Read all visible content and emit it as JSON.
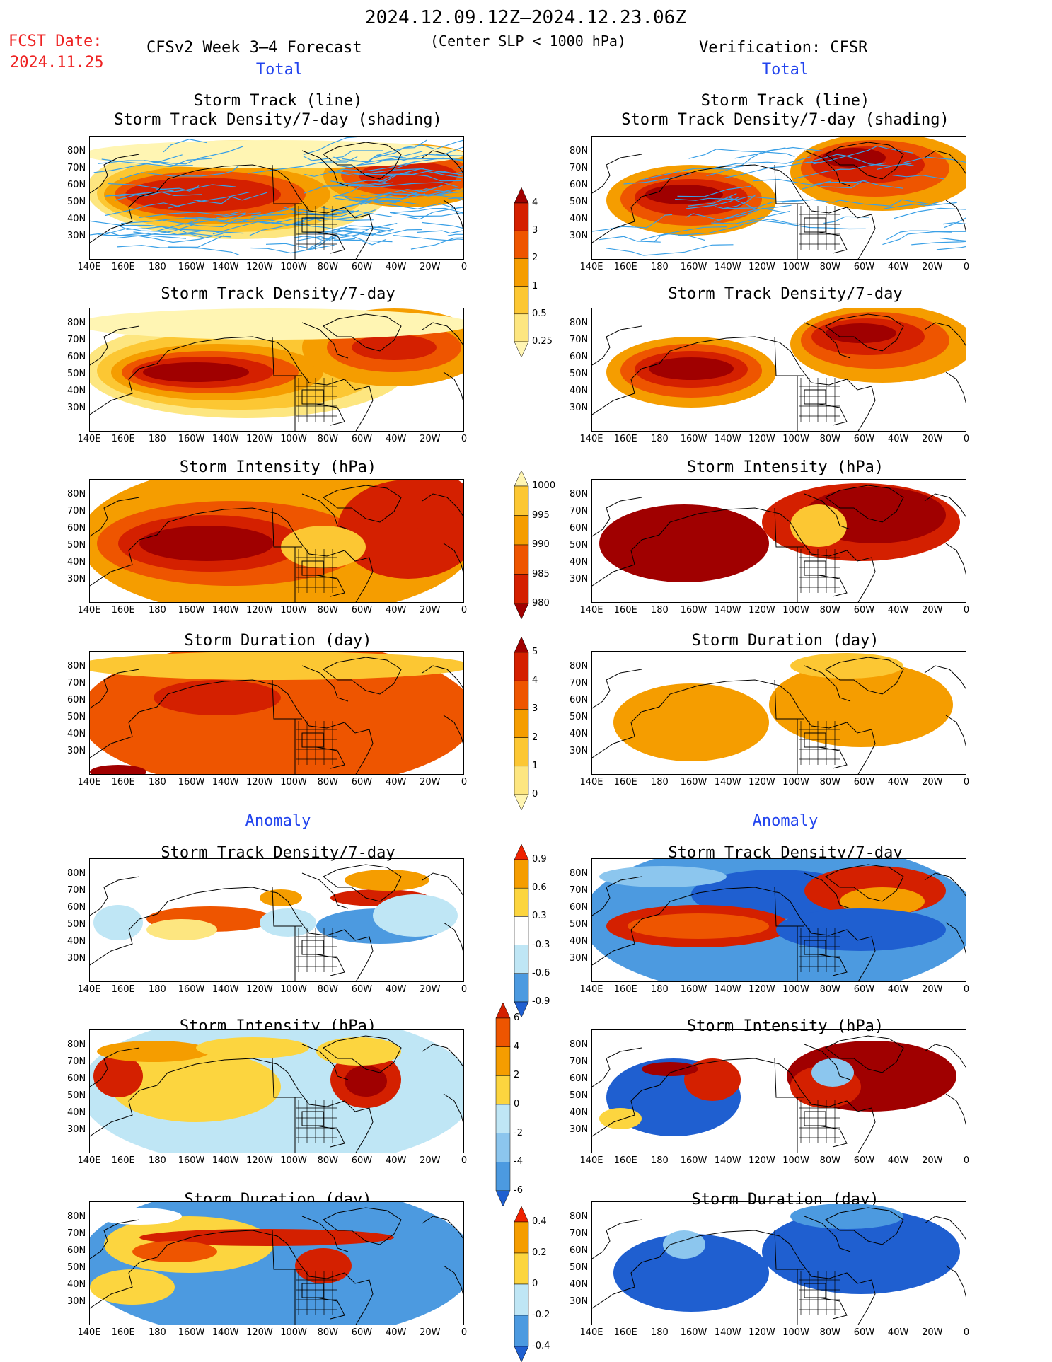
{
  "header": {
    "period": "2024.12.09.12Z–2024.12.23.06Z",
    "fcst_date_label": "FCST Date:",
    "fcst_date_value": "2024.11.25",
    "left_model": "CFSv2 Week 3–4 Forecast",
    "criterion": "(Center SLP < 1000 hPa)",
    "verification": "Verification: CFSR"
  },
  "sections": {
    "total": "Total",
    "anomaly": "Anomaly"
  },
  "panel_titles": {
    "track_line": "Storm Track (line)",
    "track_shading": "Storm Track Density/7-day (shading)",
    "density": "Storm Track Density/7-day",
    "intensity": "Storm Intensity (hPa)",
    "duration": "Storm Duration (day)"
  },
  "axes": {
    "lat_labels": [
      "80N",
      "70N",
      "60N",
      "50N",
      "40N",
      "30N"
    ],
    "lon_labels": [
      "140E",
      "160E",
      "180",
      "160W",
      "140W",
      "120W",
      "100W",
      "80W",
      "60W",
      "40W",
      "20W",
      "0"
    ]
  },
  "colorbars": {
    "density_total": {
      "labels": [
        "4",
        "3",
        "2",
        "1",
        "0.5",
        "0.25"
      ],
      "colors": [
        "#a00000",
        "#d42000",
        "#ee5500",
        "#f59d00",
        "#fcc733",
        "#fde680",
        "#fff5b3"
      ]
    },
    "intensity_total": {
      "labels": [
        "1000",
        "995",
        "990",
        "985",
        "980"
      ],
      "colors": [
        "#fff5b3",
        "#fcc733",
        "#f59d00",
        "#ee5500",
        "#d42000",
        "#a00000"
      ]
    },
    "duration_total": {
      "labels": [
        "5",
        "4",
        "3",
        "2",
        "1",
        "0"
      ],
      "colors": [
        "#a00000",
        "#d42000",
        "#ee5500",
        "#f59d00",
        "#fcc733",
        "#fde680",
        "#fff5b3"
      ]
    },
    "density_anom": {
      "labels": [
        "0.9",
        "0.6",
        "0.3",
        "-0.3",
        "-0.6",
        "-0.9"
      ],
      "colors": [
        "#ee2200",
        "#f59d00",
        "#fcd53f",
        "#ffffff",
        "#bfe6f5",
        "#4c9ae0",
        "#1f5fd0"
      ]
    },
    "intensity_anom": {
      "labels": [
        "6",
        "4",
        "2",
        "0",
        "-2",
        "-4",
        "-6"
      ],
      "colors": [
        "#d42000",
        "#ee5500",
        "#f59d00",
        "#fcd53f",
        "#bfe6f5",
        "#8cc6ee",
        "#4c9ae0",
        "#1f5fd0"
      ]
    },
    "duration_anom": {
      "labels": [
        "0.4",
        "0.2",
        "0",
        "-0.2",
        "-0.4"
      ],
      "colors": [
        "#ee2200",
        "#f59d00",
        "#fcd53f",
        "#bfe6f5",
        "#4c9ae0",
        "#1f5fd0"
      ]
    }
  },
  "palette": {
    "track_line": "#3aa0e6",
    "land_outline": "#000000"
  }
}
